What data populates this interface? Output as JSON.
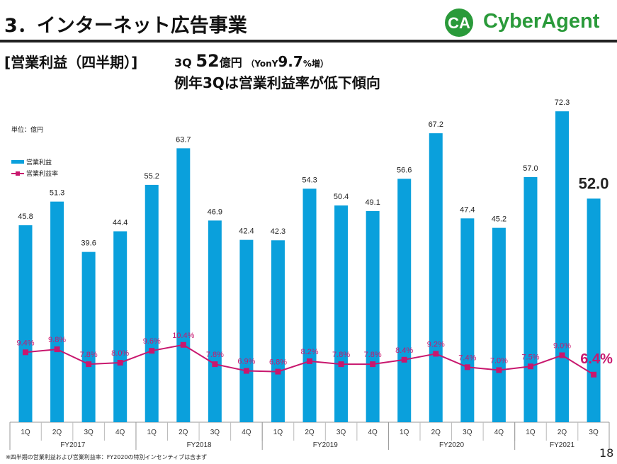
{
  "header": {
    "title": "3．インターネット広告事業",
    "logo_text": "CyberAgent",
    "logo_mark": "CA",
    "brand_color": "#2a9a3a"
  },
  "subtitle": {
    "bracket": "[営業利益（四半期）]",
    "q": "3Q",
    "amount": "52",
    "amount_unit": "億円",
    "yoy_open": "（YonY",
    "yoy_value": "9.7",
    "yoy_close": "%増）",
    "line2": "例年3Qは営業利益率が低下傾向"
  },
  "footnote": "※四半期の営業利益および営業利益率：FY2020の特別インセンティブは含まず",
  "page_number": "18",
  "chart_data": {
    "type": "bar",
    "unit_label": "単位：億円",
    "categories": [
      "1Q",
      "2Q",
      "3Q",
      "4Q",
      "1Q",
      "2Q",
      "3Q",
      "4Q",
      "1Q",
      "2Q",
      "3Q",
      "4Q",
      "1Q",
      "2Q",
      "3Q",
      "4Q",
      "1Q",
      "2Q",
      "3Q"
    ],
    "groups": [
      {
        "label": "FY2017",
        "count": 4
      },
      {
        "label": "FY2018",
        "count": 4
      },
      {
        "label": "FY2019",
        "count": 4
      },
      {
        "label": "FY2020",
        "count": 4
      },
      {
        "label": "FY2021",
        "count": 3
      }
    ],
    "series": [
      {
        "name": "営業利益",
        "type": "bar",
        "color": "#0aa0dc",
        "values": [
          45.8,
          51.3,
          39.6,
          44.4,
          55.2,
          63.7,
          46.9,
          42.4,
          42.3,
          54.3,
          50.4,
          49.1,
          56.6,
          67.2,
          47.4,
          45.2,
          57.0,
          72.3,
          52.0
        ],
        "labels": [
          "45.8",
          "51.3",
          "39.6",
          "44.4",
          "55.2",
          "63.7",
          "46.9",
          "42.4",
          "42.3",
          "54.3",
          "50.4",
          "49.1",
          "56.6",
          "67.2",
          "47.4",
          "45.2",
          "57.0",
          "72.3",
          "52.0"
        ]
      },
      {
        "name": "営業利益率",
        "type": "line",
        "color": "#c8176e",
        "values": [
          9.4,
          9.8,
          7.8,
          8.0,
          9.6,
          10.4,
          7.8,
          6.9,
          6.8,
          8.2,
          7.8,
          7.8,
          8.4,
          9.2,
          7.4,
          7.0,
          7.5,
          9.0,
          6.4
        ],
        "labels": [
          "9.4%",
          "9.8%",
          "7.8%",
          "8.0%",
          "9.6%",
          "10.4%",
          "7.8%",
          "6.9%",
          "6.8%",
          "8.2%",
          "7.8%",
          "7.8%",
          "8.4%",
          "9.2%",
          "7.4%",
          "7.0%",
          "7.5%",
          "9.0%",
          "6.4%"
        ]
      }
    ],
    "legend_placement": "top-left",
    "grid": false
  }
}
